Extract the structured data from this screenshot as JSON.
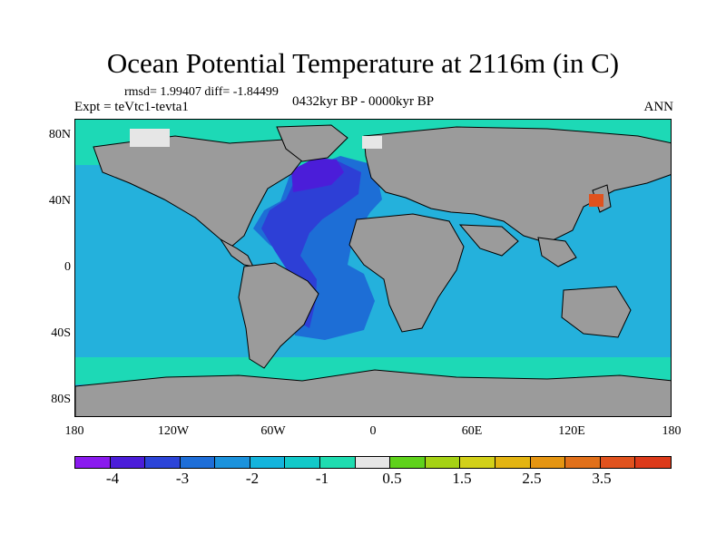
{
  "title": "Ocean Potential Temperature at 2116m (in C)",
  "stats": "rmsd= 1.99407 diff= -1.84499",
  "experiment": "Expt = teVtc1-tevta1",
  "period": "0432kyr BP - 0000kyr BP",
  "season": "ANN",
  "y_ticks": [
    "80N",
    "40N",
    "0",
    "40S",
    "80S"
  ],
  "x_ticks": [
    "180",
    "120W",
    "60W",
    "0",
    "60E",
    "120E",
    "180"
  ],
  "colorbar": {
    "colors": [
      "#8a1aee",
      "#4b1dd9",
      "#2c44d8",
      "#1e6ed8",
      "#1b92dc",
      "#14b4dc",
      "#12c9c9",
      "#1fdcb0",
      "#e6e6e6",
      "#5fd21b",
      "#a5d215",
      "#d2d019",
      "#e3b412",
      "#e59512",
      "#e1701a",
      "#e0521e",
      "#dc3a1a"
    ],
    "labels": [
      "-4",
      "-3",
      "-2",
      "-1",
      "0.5",
      "1.5",
      "2.5",
      "3.5"
    ]
  },
  "colors": {
    "land": "#9b9b9b",
    "ocean_background": "#24b1dc",
    "southern_ocean": "#1dd9b6",
    "atlantic_outer": "#1d6ed6",
    "atlantic_inner": "#2d3fd6",
    "north_atlantic": "#4b1dd9",
    "japan_anomaly": "#e0521e",
    "arctic_ice": "#e6e6e6"
  }
}
